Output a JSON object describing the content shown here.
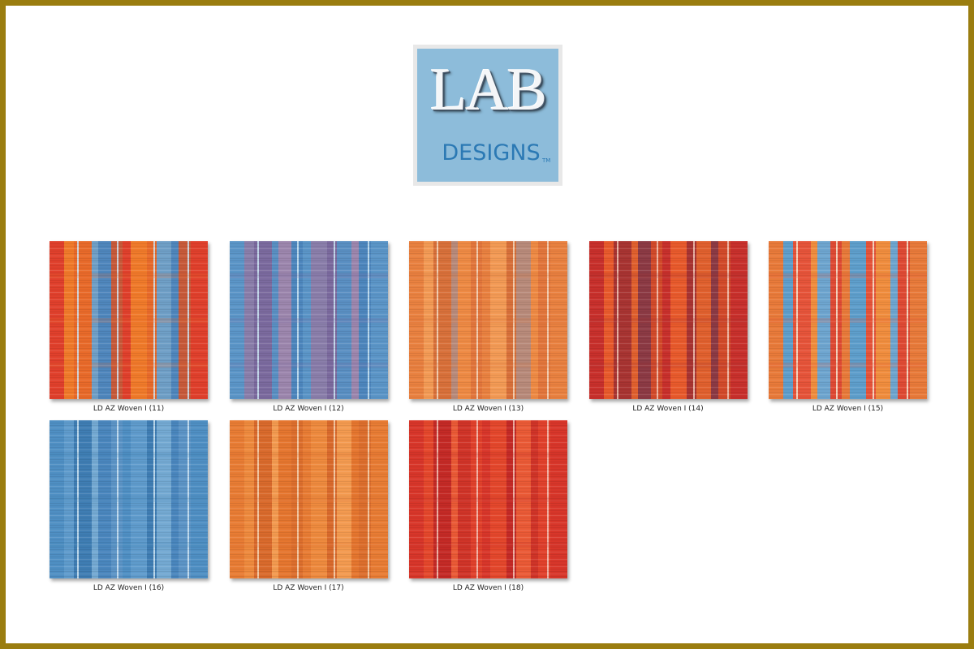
{
  "logo": {
    "main": "LAB",
    "sub": "DESIGNS",
    "tm": "TM",
    "background": "#8dbcda"
  },
  "border_color": "#9a7d10",
  "tiles": [
    {
      "caption": "LD AZ Woven I (11)",
      "stripes": [
        "#e0402c",
        "#f07a2a",
        "#e86a2a",
        "#6f9fc6",
        "#4f86bc",
        "#c75a3a"
      ],
      "highlight": "#cfe4f2"
    },
    {
      "caption": "LD AZ Woven I (12)",
      "stripes": [
        "#5b95c7",
        "#8a7eaa",
        "#7b6a9e",
        "#5a8fc2",
        "#9c86ad",
        "#4d86bd"
      ],
      "highlight": "#cde6f5"
    },
    {
      "caption": "LD AZ Woven I (13)",
      "stripes": [
        "#e98140",
        "#f39a55",
        "#d8703a",
        "#b88a7a",
        "#ee8a44",
        "#e2763c"
      ],
      "highlight": "#f6d9bf"
    },
    {
      "caption": "LD AZ Woven I (14)",
      "stripes": [
        "#c8302c",
        "#e85a2c",
        "#a83432",
        "#e0602e",
        "#8c3a44",
        "#d24a2a"
      ],
      "highlight": "#f3c7b6"
    },
    {
      "caption": "LD AZ Woven I (15)",
      "stripes": [
        "#e87a3a",
        "#5e9ecb",
        "#e6543a",
        "#f08d3e",
        "#6ea5cf",
        "#df4a34"
      ],
      "highlight": "#f7e8d2"
    },
    {
      "caption": "LD AZ Woven I (16)",
      "stripes": [
        "#4f8fc3",
        "#5f9bcc",
        "#3f7db3",
        "#74a9d2",
        "#4a86bd",
        "#5c94c6"
      ],
      "highlight": "#cfe5f3"
    },
    {
      "caption": "LD AZ Woven I (17)",
      "stripes": [
        "#e87c34",
        "#ee8a3e",
        "#d96a2c",
        "#f39a50",
        "#e5762f",
        "#dc6e2d"
      ],
      "highlight": "#f7d5b4"
    },
    {
      "caption": "LD AZ Woven I (18)",
      "stripes": [
        "#d8362a",
        "#e4472c",
        "#c42a26",
        "#ea5a36",
        "#d03428",
        "#e1412c"
      ],
      "highlight": "#f4c4b7"
    }
  ]
}
